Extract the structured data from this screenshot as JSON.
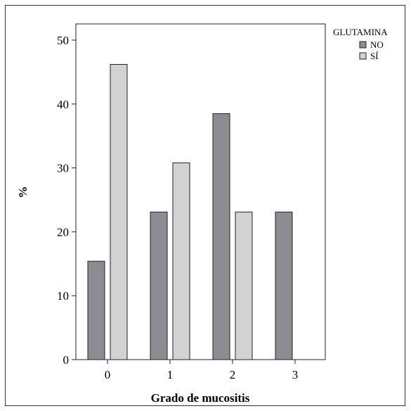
{
  "chart_data": {
    "type": "bar",
    "title": "",
    "xlabel": "Grado de mucositis",
    "ylabel": "%",
    "categories": [
      "0",
      "1",
      "2",
      "3"
    ],
    "ylim": [
      0,
      50
    ],
    "yticks": [
      "0",
      "10",
      "20",
      "30",
      "40",
      "50"
    ],
    "legend_title": "GLUTAMINA",
    "legend_position": "top-right",
    "grid": false,
    "series": [
      {
        "name": "NO",
        "color": "#8c8c92",
        "values": [
          15.4,
          23.1,
          38.5,
          23.1
        ]
      },
      {
        "name": "SÍ",
        "color": "#d2d2d4",
        "values": [
          46.2,
          30.8,
          23.1,
          null
        ]
      }
    ]
  }
}
